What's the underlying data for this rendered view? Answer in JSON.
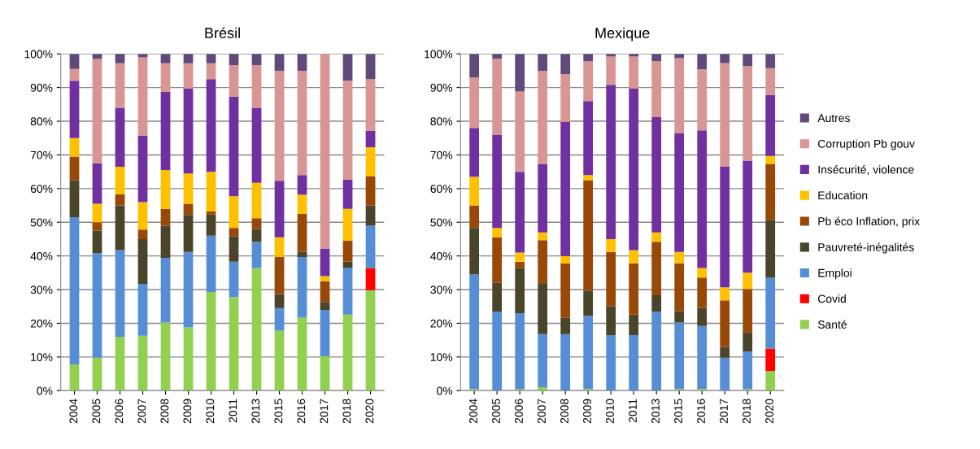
{
  "chart_data": [
    {
      "type": "bar",
      "title": "Brésil",
      "stacked": true,
      "grid": "y",
      "legend": false,
      "categories": [
        "2004",
        "2005",
        "2006",
        "2007",
        "2008",
        "2009",
        "2010",
        "2011",
        "2013",
        "2015",
        "2016",
        "2017",
        "2018",
        "2020"
      ],
      "ylim": [
        0,
        100
      ],
      "yticks": [
        {
          "value": 0,
          "label": "0%"
        },
        {
          "value": 10,
          "label": "10%"
        },
        {
          "value": 20,
          "label": "20%"
        },
        {
          "value": 30,
          "label": "30%"
        },
        {
          "value": 40,
          "label": "40%"
        },
        {
          "value": 50,
          "label": "50%"
        },
        {
          "value": 60,
          "label": "60%"
        },
        {
          "value": 70,
          "label": "70%"
        },
        {
          "value": 80,
          "label": "80%"
        },
        {
          "value": 90,
          "label": "90%"
        },
        {
          "value": 100,
          "label": "100%"
        }
      ],
      "series": [
        {
          "color": "#92d050",
          "values": [
            7.8,
            9.8,
            16,
            16.3,
            20.2,
            18.8,
            29.3,
            27.8,
            36.4,
            17.8,
            21.7,
            10.2,
            22.6,
            29.8
          ]
        },
        {
          "color": "#ff0000",
          "values": [
            0,
            0,
            0,
            0,
            0,
            0,
            0,
            0,
            0,
            0,
            0,
            0,
            0,
            6.6
          ]
        },
        {
          "color": "#558ed5",
          "values": [
            43.7,
            31,
            25.7,
            15.4,
            19.2,
            22.4,
            16.7,
            10.5,
            7.8,
            6.7,
            18,
            13.8,
            13.8,
            12.6
          ]
        },
        {
          "color": "#4a452a",
          "values": [
            11,
            6.7,
            13.3,
            13.3,
            9.6,
            11,
            6.3,
            7.5,
            3.8,
            4.2,
            1.5,
            2.3,
            1.9,
            6
          ]
        },
        {
          "color": "#984807",
          "values": [
            7,
            2.5,
            3.3,
            2.8,
            5,
            3.3,
            0.9,
            2.5,
            3.2,
            11,
            11.3,
            6.2,
            6.2,
            8.7
          ]
        },
        {
          "color": "#ffc000",
          "values": [
            5.5,
            5.5,
            8.2,
            8.2,
            11.5,
            9,
            11.8,
            9.4,
            10.5,
            5.8,
            5.7,
            1.5,
            9.5,
            8.6
          ]
        },
        {
          "color": "#7030a0",
          "values": [
            17,
            12,
            17.5,
            19.8,
            23.2,
            25.2,
            27.5,
            29.6,
            22.3,
            16.8,
            5.8,
            8.2,
            8.7,
            4.9
          ]
        },
        {
          "color": "#d99594",
          "values": [
            3.5,
            31,
            13.2,
            23.2,
            8.5,
            7.5,
            4.7,
            9.4,
            12.7,
            32.7,
            31,
            57.8,
            29.3,
            15.3
          ]
        },
        {
          "color": "#604a7b",
          "values": [
            4.5,
            1.5,
            2.8,
            1,
            2.8,
            2.8,
            2.8,
            3.3,
            3.3,
            5,
            5,
            null,
            8,
            7.5
          ]
        }
      ]
    },
    {
      "type": "bar",
      "title": "Mexique",
      "stacked": true,
      "grid": "y",
      "legend": "right",
      "categories": [
        "2004",
        "2005",
        "2006",
        "2007",
        "2008",
        "2009",
        "2010",
        "2011",
        "2013",
        "2015",
        "2016",
        "2017",
        "2018",
        "2020"
      ],
      "ylim": [
        0,
        100
      ],
      "yticks": [
        {
          "value": 0,
          "label": "0%"
        },
        {
          "value": 10,
          "label": "10%"
        },
        {
          "value": 20,
          "label": "20%"
        },
        {
          "value": 30,
          "label": "30%"
        },
        {
          "value": 40,
          "label": "40%"
        },
        {
          "value": 50,
          "label": "50%"
        },
        {
          "value": 60,
          "label": "60%"
        },
        {
          "value": 70,
          "label": "70%"
        },
        {
          "value": 80,
          "label": "80%"
        },
        {
          "value": 90,
          "label": "90%"
        },
        {
          "value": 100,
          "label": "100%"
        }
      ],
      "series": [
        {
          "name": "Santé",
          "color": "#92d050",
          "values": [
            0.5,
            0,
            0.5,
            1,
            0,
            0.5,
            0,
            0,
            0,
            0.5,
            0.5,
            0,
            0.5,
            5.8
          ]
        },
        {
          "name": "Covid",
          "color": "#ff0000",
          "values": [
            0,
            0,
            0,
            0,
            0,
            0,
            0,
            0,
            0,
            0,
            0,
            0,
            0,
            6.7
          ]
        },
        {
          "name": "Emploi",
          "color": "#558ed5",
          "values": [
            34,
            23.5,
            22.5,
            15.8,
            16.8,
            21.7,
            16.5,
            16.5,
            23.5,
            19.7,
            18.7,
            9.8,
            11.1,
            21
          ]
        },
        {
          "name": "Pauvreté-inégalités",
          "color": "#4a452a",
          "values": [
            13.8,
            8.5,
            13.5,
            14.9,
            4.8,
            7.5,
            8.5,
            6.1,
            4.8,
            3.4,
            5.4,
            3.2,
            5.8,
            17.2
          ]
        },
        {
          "name": "Pb éco Inflation, prix",
          "color": "#984807",
          "values": [
            6.7,
            13.5,
            1.8,
            13,
            16.2,
            32.8,
            16.2,
            15.2,
            15.9,
            14.2,
            9,
            13.8,
            12.8,
            16.6
          ]
        },
        {
          "name": "Education",
          "color": "#ffc000",
          "values": [
            8.5,
            2.8,
            2.7,
            2.3,
            2.2,
            1.5,
            3.8,
            3.9,
            2.8,
            3.4,
            2.8,
            3.9,
            4.8,
            2.4
          ]
        },
        {
          "name": "Insécurité, violence",
          "color": "#7030a0",
          "values": [
            14.5,
            27.7,
            24,
            20.3,
            39.8,
            22,
            45.8,
            48.1,
            34.2,
            35.3,
            40.9,
            35.8,
            33.3,
            18.1
          ]
        },
        {
          "name": "Corruption Pb gouv",
          "color": "#d99594",
          "values": [
            15,
            22.6,
            23.8,
            27.7,
            14.2,
            11.8,
            8.4,
            9.4,
            16.6,
            22.2,
            18.1,
            30.8,
            28.1,
            8
          ]
        },
        {
          "name": "Autres",
          "color": "#604a7b",
          "values": [
            7,
            1.4,
            11.2,
            5,
            6,
            2.2,
            0.8,
            0.8,
            2.2,
            1.3,
            4.6,
            2.7,
            3.6,
            4.2
          ]
        }
      ]
    }
  ]
}
